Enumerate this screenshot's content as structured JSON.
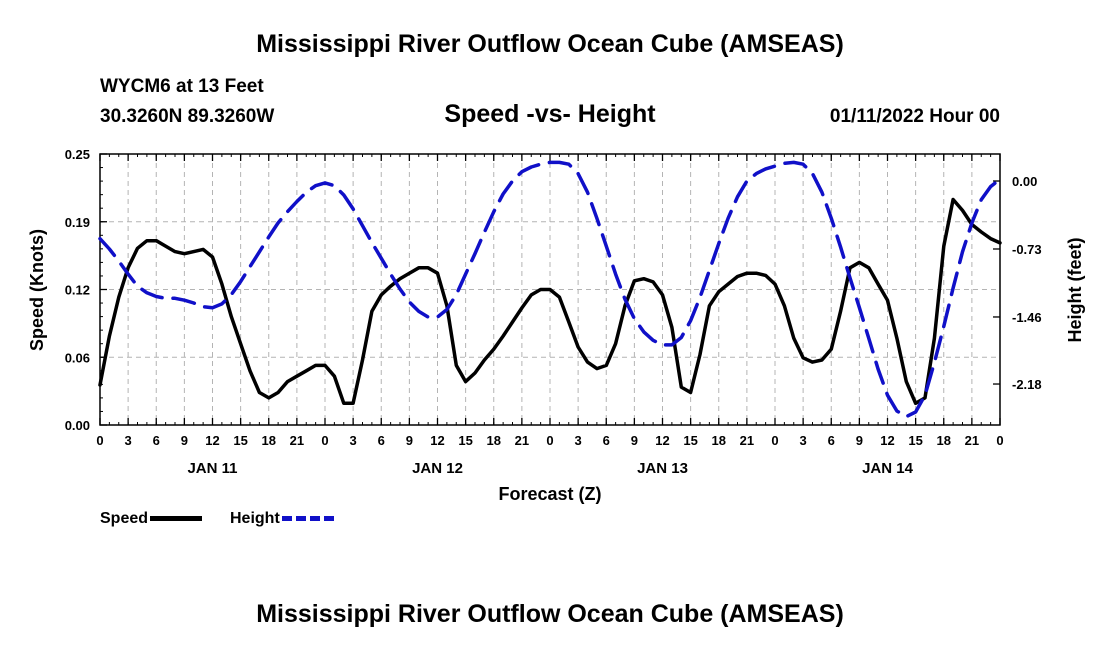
{
  "chart_data": {
    "type": "line",
    "title": "Mississippi River Outflow Ocean Cube (AMSEAS)",
    "footer_title": "Mississippi River Outflow Ocean Cube (AMSEAS)",
    "station": "WYCM6 at 13 Feet",
    "coords": "30.3260N  89.3260W",
    "subtitle": "Speed -vs- Height",
    "date": "01/11/2022 Hour 00",
    "xlabel": "Forecast (Z)",
    "ylabel_left": "Speed (Knots)",
    "ylabel_right": "Height (feet)",
    "x_range": [
      0,
      96
    ],
    "x_tick_labels": [
      "0",
      "3",
      "6",
      "9",
      "12",
      "15",
      "18",
      "21",
      "0",
      "3",
      "6",
      "9",
      "12",
      "15",
      "18",
      "21",
      "0",
      "3",
      "6",
      "9",
      "12",
      "15",
      "18",
      "21",
      "0",
      "3",
      "6",
      "9",
      "12",
      "15",
      "18",
      "21",
      "0"
    ],
    "day_labels": [
      {
        "label": "JAN 11",
        "hour": 12
      },
      {
        "label": "JAN 12",
        "hour": 36
      },
      {
        "label": "JAN 13",
        "hour": 60
      },
      {
        "label": "JAN 14",
        "hour": 84
      }
    ],
    "y_left": {
      "range": [
        0,
        0.25
      ],
      "ticks": [
        "0.00",
        "0.06",
        "0.12",
        "0.19",
        "0.25"
      ],
      "tick_values": [
        0,
        0.0625,
        0.125,
        0.1875,
        0.25
      ]
    },
    "y_right": {
      "range": [
        -2.62,
        0.29
      ],
      "ticks": [
        "0.00",
        "-0.73",
        "-1.46",
        "-2.18"
      ],
      "tick_values": [
        0.0,
        -0.73,
        -1.46,
        -2.18
      ]
    },
    "series": [
      {
        "name": "Speed",
        "axis": "left",
        "color": "#000000",
        "dash": "solid",
        "x": [
          0,
          1,
          2,
          3,
          4,
          5,
          6,
          7,
          8,
          9,
          10,
          11,
          12,
          13,
          14,
          15,
          16,
          17,
          18,
          19,
          20,
          21,
          22,
          23,
          24,
          25,
          26,
          27,
          28,
          29,
          30,
          31,
          32,
          33,
          34,
          35,
          36,
          37,
          38,
          39,
          40,
          41,
          42,
          43,
          44,
          45,
          46,
          47,
          48,
          49,
          50,
          51,
          52,
          53,
          54,
          55,
          56,
          57,
          58,
          59,
          60,
          61,
          62,
          63,
          64,
          65,
          66,
          67,
          68,
          69,
          70,
          71,
          72,
          73,
          74,
          75,
          76,
          77,
          78,
          79,
          80,
          81,
          82,
          83,
          84,
          85,
          86,
          87,
          88,
          89,
          90,
          91,
          92,
          93,
          94,
          95,
          96
        ],
        "values": [
          0.037,
          0.082,
          0.118,
          0.145,
          0.163,
          0.17,
          0.17,
          0.165,
          0.16,
          0.158,
          0.16,
          0.162,
          0.155,
          0.13,
          0.1,
          0.075,
          0.05,
          0.03,
          0.025,
          0.03,
          0.04,
          0.045,
          0.05,
          0.055,
          0.055,
          0.045,
          0.02,
          0.02,
          0.06,
          0.105,
          0.12,
          0.128,
          0.135,
          0.14,
          0.145,
          0.145,
          0.14,
          0.11,
          0.055,
          0.04,
          0.048,
          0.06,
          0.07,
          0.082,
          0.095,
          0.108,
          0.12,
          0.125,
          0.125,
          0.118,
          0.095,
          0.072,
          0.058,
          0.052,
          0.055,
          0.075,
          0.11,
          0.133,
          0.135,
          0.132,
          0.12,
          0.09,
          0.035,
          0.03,
          0.065,
          0.11,
          0.123,
          0.13,
          0.137,
          0.14,
          0.14,
          0.138,
          0.13,
          0.11,
          0.08,
          0.062,
          0.058,
          0.06,
          0.07,
          0.105,
          0.145,
          0.15,
          0.145,
          0.13,
          0.115,
          0.08,
          0.04,
          0.02,
          0.025,
          0.08,
          0.165,
          0.208,
          0.198,
          0.185,
          0.178,
          0.172,
          0.168
        ]
      },
      {
        "name": "Height",
        "axis": "right",
        "color": "#1010c8",
        "dash": "dashed",
        "x": [
          0,
          1,
          2,
          3,
          4,
          5,
          6,
          7,
          8,
          9,
          10,
          11,
          12,
          13,
          14,
          15,
          16,
          17,
          18,
          19,
          20,
          21,
          22,
          23,
          24,
          25,
          26,
          27,
          28,
          29,
          30,
          31,
          32,
          33,
          34,
          35,
          36,
          37,
          38,
          39,
          40,
          41,
          42,
          43,
          44,
          45,
          46,
          47,
          48,
          49,
          50,
          51,
          52,
          53,
          54,
          55,
          56,
          57,
          58,
          59,
          60,
          61,
          62,
          63,
          64,
          65,
          66,
          67,
          68,
          69,
          70,
          71,
          72,
          73,
          74,
          75,
          76,
          77,
          78,
          79,
          80,
          81,
          82,
          83,
          84,
          85,
          86,
          87,
          88,
          89,
          90,
          91,
          92,
          93,
          94,
          95,
          96
        ],
        "values": [
          -0.62,
          -0.73,
          -0.86,
          -1.0,
          -1.13,
          -1.2,
          -1.24,
          -1.26,
          -1.26,
          -1.28,
          -1.31,
          -1.35,
          -1.36,
          -1.32,
          -1.22,
          -1.08,
          -0.92,
          -0.76,
          -0.6,
          -0.45,
          -0.33,
          -0.22,
          -0.12,
          -0.05,
          -0.02,
          -0.05,
          -0.15,
          -0.3,
          -0.48,
          -0.66,
          -0.83,
          -1.0,
          -1.16,
          -1.3,
          -1.4,
          -1.46,
          -1.46,
          -1.38,
          -1.22,
          -1.0,
          -0.78,
          -0.55,
          -0.33,
          -0.14,
          0.0,
          0.1,
          0.15,
          0.18,
          0.2,
          0.2,
          0.18,
          0.08,
          -0.12,
          -0.4,
          -0.7,
          -1.0,
          -1.27,
          -1.48,
          -1.62,
          -1.71,
          -1.76,
          -1.76,
          -1.68,
          -1.5,
          -1.25,
          -0.96,
          -0.67,
          -0.4,
          -0.17,
          0.0,
          0.08,
          0.13,
          0.16,
          0.19,
          0.2,
          0.18,
          0.08,
          -0.12,
          -0.4,
          -0.71,
          -1.04,
          -1.36,
          -1.69,
          -2.02,
          -2.3,
          -2.47,
          -2.53,
          -2.48,
          -2.3,
          -1.95,
          -1.56,
          -1.15,
          -0.76,
          -0.45,
          -0.2,
          -0.06,
          0.02
        ]
      }
    ],
    "legend": [
      {
        "name": "Speed",
        "color": "#000000"
      },
      {
        "name": "Height",
        "color": "#1010c8"
      }
    ]
  }
}
